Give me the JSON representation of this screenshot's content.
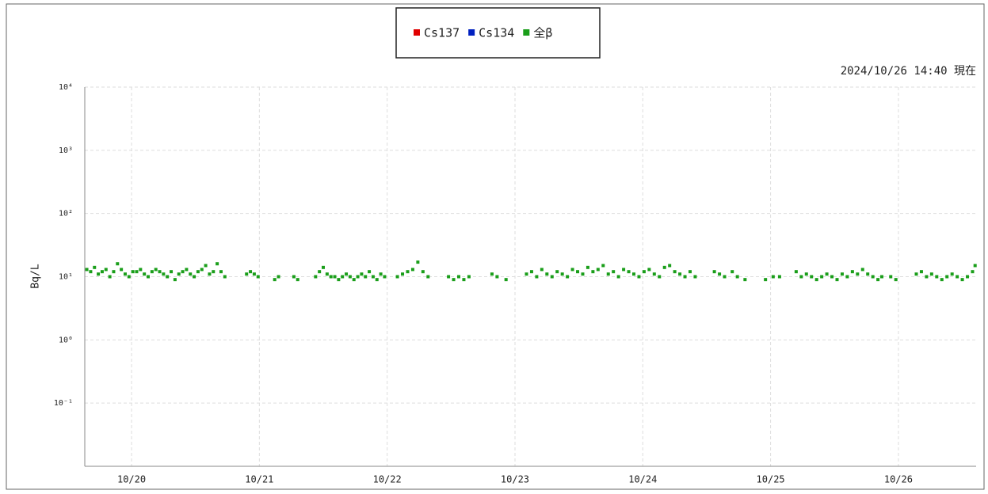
{
  "chart_data": {
    "type": "scatter",
    "annotation": "2024/10/26 14:40 現在",
    "ylabel": "Bq/L",
    "log_y": true,
    "grid": true,
    "legend": "top",
    "xlim": [
      19.634,
      26.608
    ],
    "xticks": [
      {
        "value": 20,
        "label": "10/20"
      },
      {
        "value": 21,
        "label": "10/21"
      },
      {
        "value": 22,
        "label": "10/22"
      },
      {
        "value": 23,
        "label": "10/23"
      },
      {
        "value": 24,
        "label": "10/24"
      },
      {
        "value": 25,
        "label": "10/25"
      },
      {
        "value": 26,
        "label": "10/26"
      }
    ],
    "ylim": [
      0.01,
      10000
    ],
    "yticks": [
      {
        "value": 10000,
        "label": "10⁴"
      },
      {
        "value": 1000,
        "label": "10³"
      },
      {
        "value": 100,
        "label": "10²"
      },
      {
        "value": 10,
        "label": "10¹"
      },
      {
        "value": 1,
        "label": "10⁰"
      },
      {
        "value": 0.1,
        "label": "10⁻¹"
      }
    ],
    "series": [
      {
        "name": "Cs137",
        "color": "#e00000",
        "x": [],
        "values": []
      },
      {
        "name": "Cs134",
        "color": "#0020c0",
        "x": [],
        "values": []
      },
      {
        "name": "全β",
        "color": "#1a9e1a",
        "x": [
          19.65,
          19.68,
          19.71,
          19.74,
          19.77,
          19.8,
          19.83,
          19.86,
          19.89,
          19.92,
          19.95,
          19.98,
          20.01,
          20.04,
          20.07,
          20.1,
          20.13,
          20.16,
          20.19,
          20.22,
          20.25,
          20.28,
          20.31,
          20.34,
          20.37,
          20.4,
          20.43,
          20.46,
          20.49,
          20.52,
          20.55,
          20.58,
          20.61,
          20.64,
          20.67,
          20.7,
          20.73,
          20.9,
          20.93,
          20.96,
          20.99,
          21.12,
          21.15,
          21.27,
          21.3,
          21.44,
          21.47,
          21.5,
          21.53,
          21.56,
          21.59,
          21.62,
          21.65,
          21.68,
          21.71,
          21.74,
          21.77,
          21.8,
          21.83,
          21.86,
          21.89,
          21.92,
          21.95,
          21.98,
          22.08,
          22.12,
          22.16,
          22.2,
          22.24,
          22.28,
          22.32,
          22.48,
          22.52,
          22.56,
          22.6,
          22.64,
          22.82,
          22.86,
          22.93,
          23.09,
          23.13,
          23.17,
          23.21,
          23.25,
          23.29,
          23.33,
          23.37,
          23.41,
          23.45,
          23.49,
          23.53,
          23.57,
          23.61,
          23.65,
          23.69,
          23.73,
          23.77,
          23.81,
          23.85,
          23.89,
          23.93,
          23.97,
          24.01,
          24.05,
          24.09,
          24.13,
          24.17,
          24.21,
          24.25,
          24.29,
          24.33,
          24.37,
          24.41,
          24.56,
          24.6,
          24.64,
          24.7,
          24.74,
          24.8,
          24.96,
          25.02,
          25.07,
          25.2,
          25.24,
          25.28,
          25.32,
          25.36,
          25.4,
          25.44,
          25.48,
          25.52,
          25.56,
          25.6,
          25.64,
          25.68,
          25.72,
          25.76,
          25.8,
          25.84,
          25.87,
          25.94,
          25.98,
          26.14,
          26.18,
          26.22,
          26.26,
          26.3,
          26.34,
          26.38,
          26.42,
          26.46,
          26.5,
          26.54,
          26.58,
          26.6
        ],
        "values": [
          13,
          12,
          14,
          11,
          12,
          13,
          10,
          12,
          16,
          13,
          11,
          10,
          12,
          12,
          13,
          11,
          10,
          12,
          13,
          12,
          11,
          10,
          12,
          9,
          11,
          12,
          13,
          11,
          10,
          12,
          13,
          15,
          11,
          12,
          16,
          12,
          10,
          11,
          12,
          11,
          10,
          9,
          10,
          10,
          9,
          10,
          12,
          14,
          11,
          10,
          10,
          9,
          10,
          11,
          10,
          9,
          10,
          11,
          10,
          12,
          10,
          9,
          11,
          10,
          10,
          11,
          12,
          13,
          17,
          12,
          10,
          10,
          9,
          10,
          9,
          10,
          11,
          10,
          9,
          11,
          12,
          10,
          13,
          11,
          10,
          12,
          11,
          10,
          13,
          12,
          11,
          14,
          12,
          13,
          15,
          11,
          12,
          10,
          13,
          12,
          11,
          10,
          12,
          13,
          11,
          10,
          14,
          15,
          12,
          11,
          10,
          12,
          10,
          12,
          11,
          10,
          12,
          10,
          9,
          9,
          10,
          10,
          12,
          10,
          11,
          10,
          9,
          10,
          11,
          10,
          9,
          11,
          10,
          12,
          11,
          13,
          11,
          10,
          9,
          10,
          10,
          9,
          11,
          12,
          10,
          11,
          10,
          9,
          10,
          11,
          10,
          9,
          10,
          12,
          15
        ]
      }
    ]
  }
}
